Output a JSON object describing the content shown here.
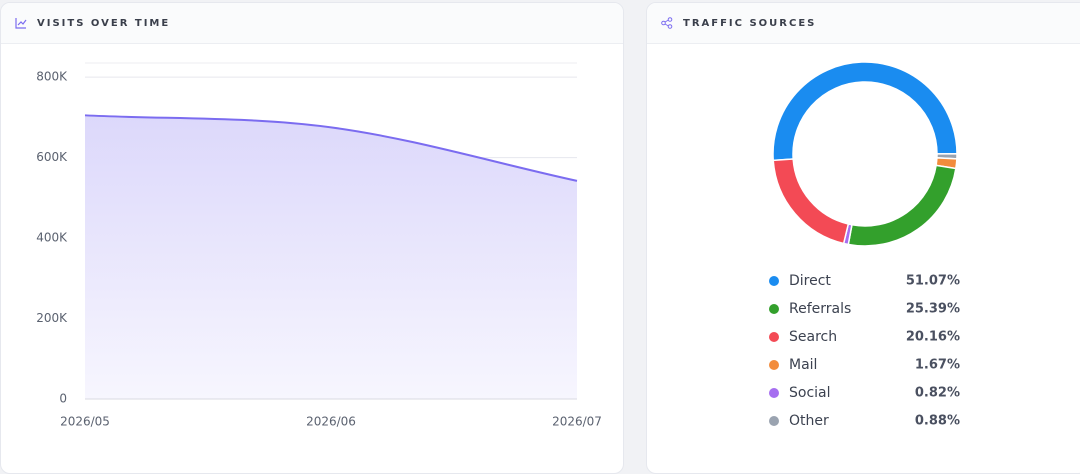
{
  "chart_data": [
    {
      "type": "area",
      "title": "VISITS OVER TIME",
      "categories": [
        "2026/05",
        "2026/06",
        "2026/07"
      ],
      "values": [
        705000,
        675000,
        542000
      ],
      "color": "#7b6cf0",
      "ylim": [
        0,
        835000
      ],
      "yticks": [
        0,
        {
          "value": 200000,
          "label": "200K"
        },
        {
          "value": 400000,
          "label": "400K"
        },
        {
          "value": 600000,
          "label": "600K"
        },
        {
          "value": 800000,
          "label": "800K"
        }
      ],
      "grid": true
    },
    {
      "type": "doughnut",
      "title": "TRAFFIC SOURCES",
      "categories": [
        "Direct",
        "Referrals",
        "Search",
        "Mail",
        "Social",
        "Other"
      ],
      "values": [
        51.07,
        25.39,
        20.16,
        1.67,
        0.82,
        0.88
      ],
      "value_labels": [
        "51.07%",
        "25.39%",
        "20.16%",
        "1.67%",
        "0.82%",
        "0.88%"
      ],
      "colors": [
        "#1a8cf0",
        "#33a02c",
        "#f34a55",
        "#f28c3c",
        "#a66ef0",
        "#9aa3b0"
      ]
    }
  ]
}
